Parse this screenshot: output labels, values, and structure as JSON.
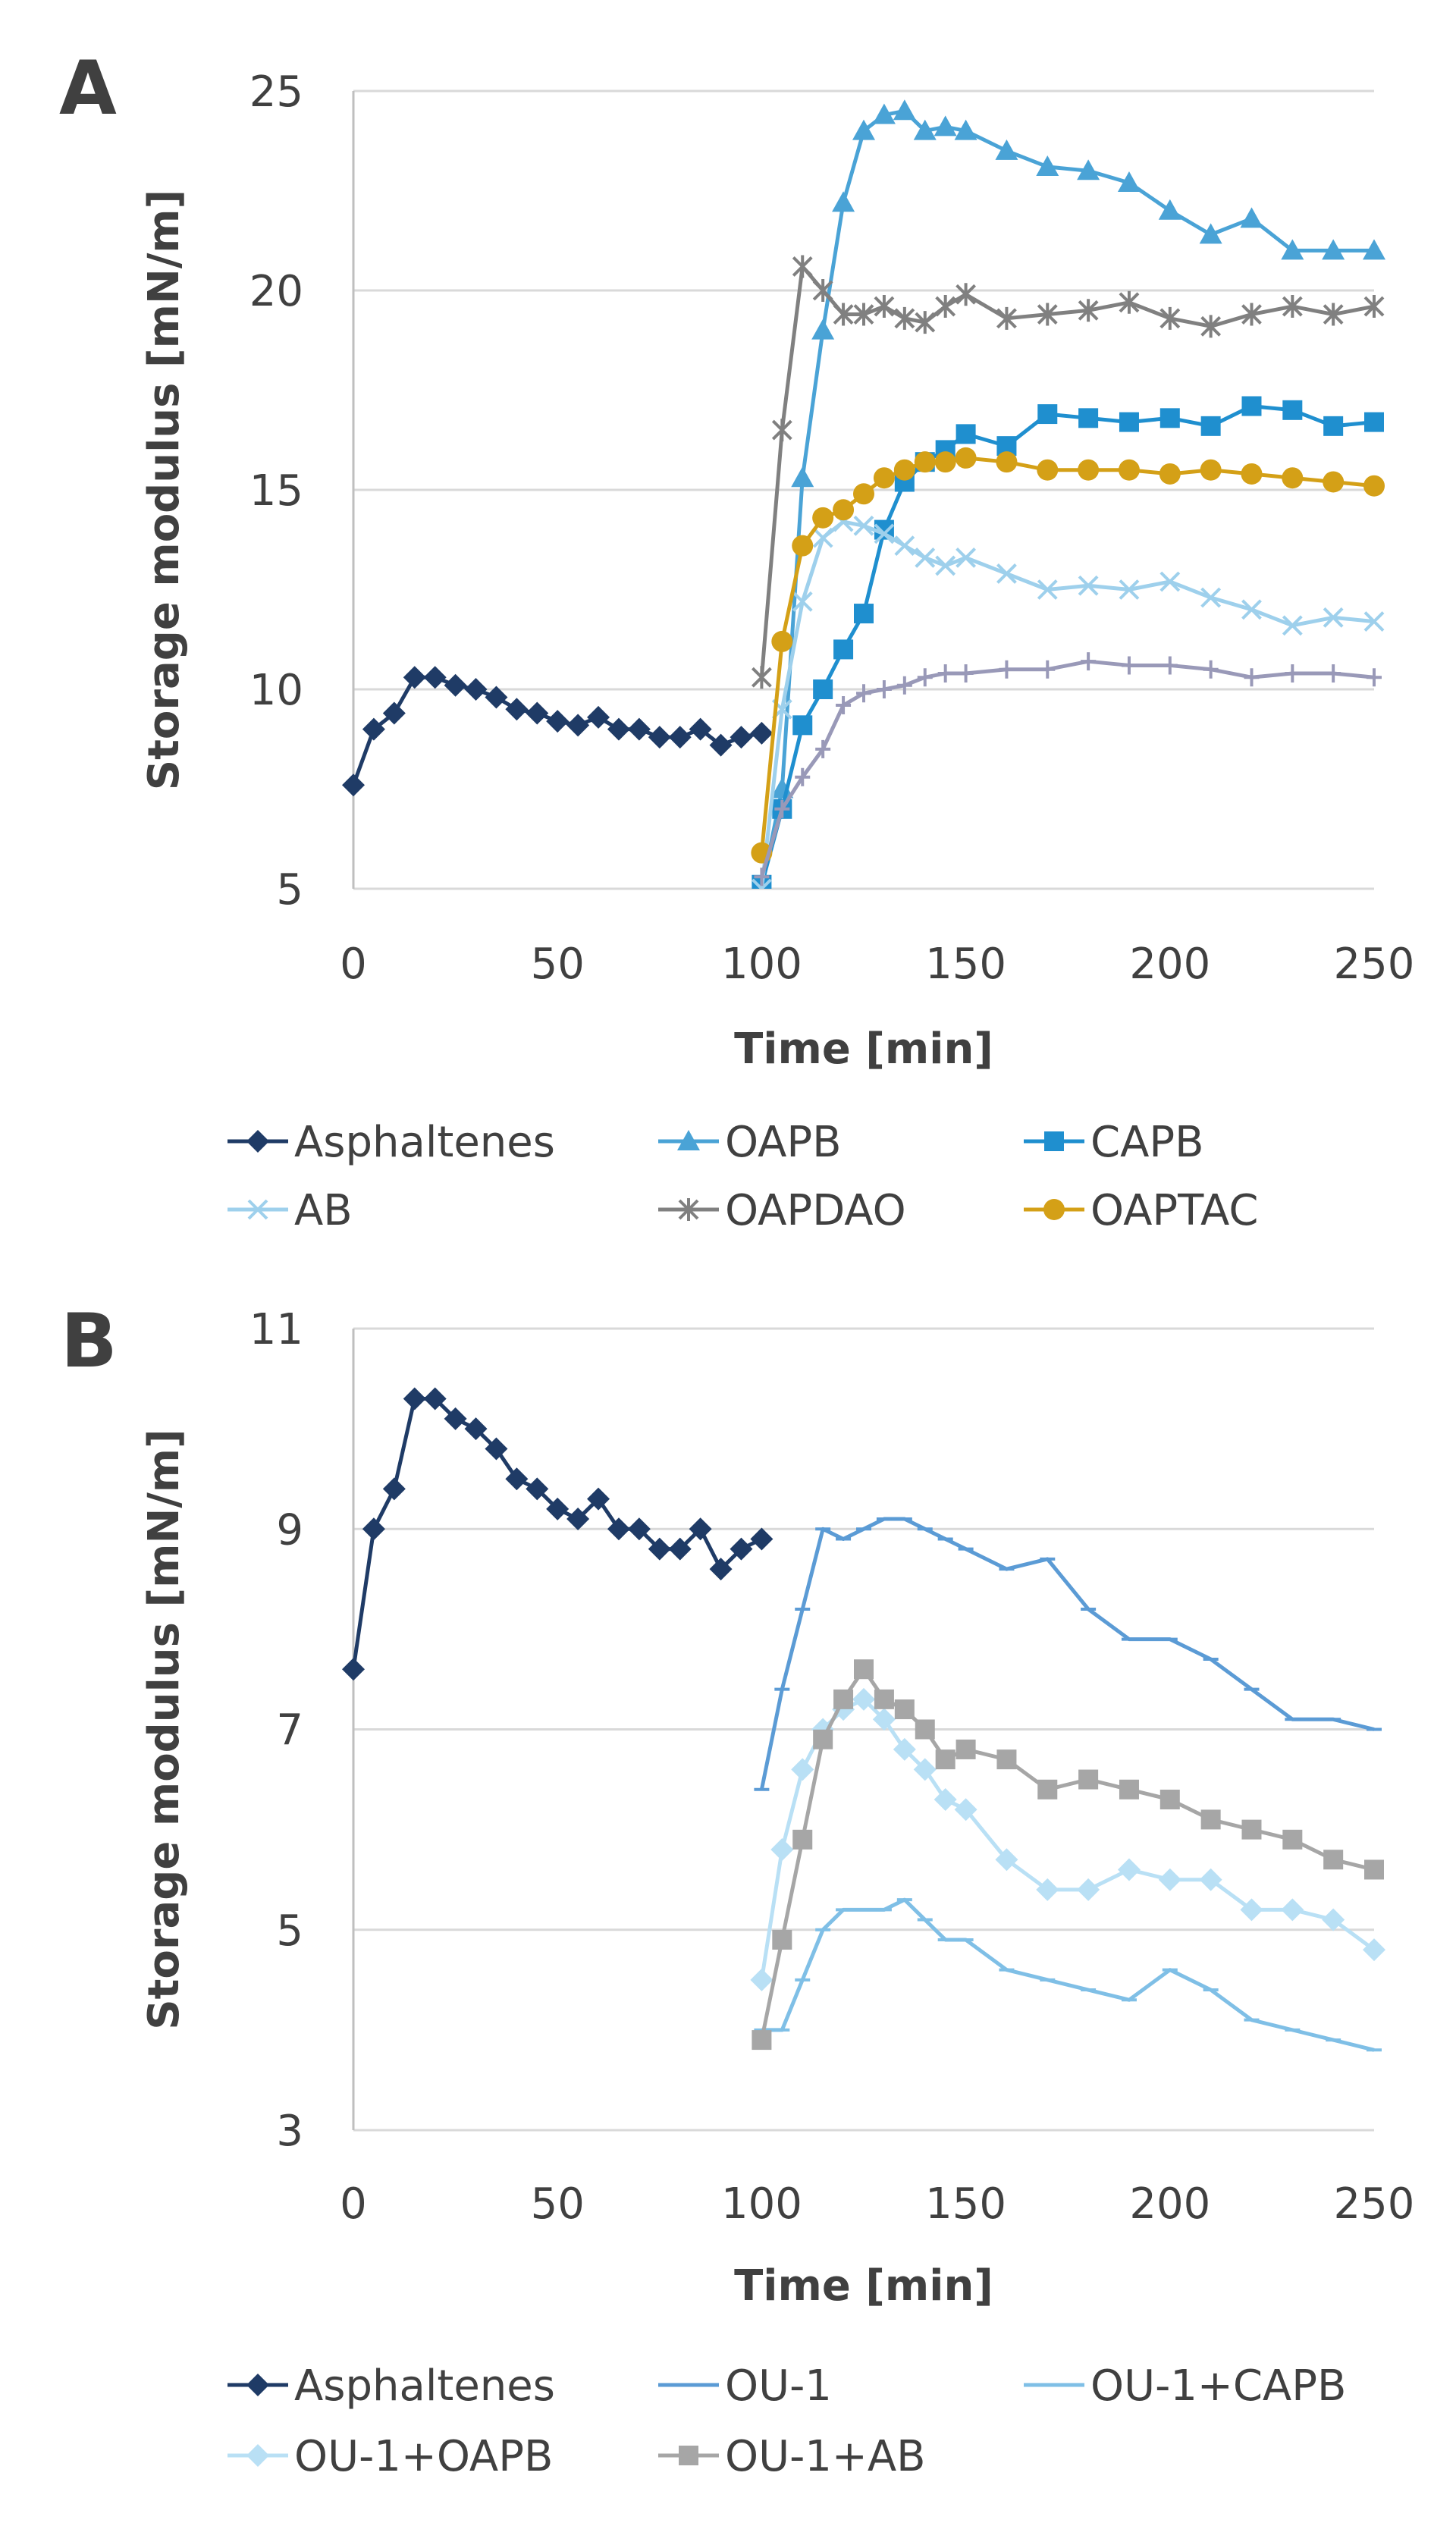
{
  "chart_data": [
    {
      "type": "line",
      "panel_label": "A",
      "xlabel": "Time [min]",
      "ylabel": "Storage modulus [mN/m]",
      "xlim": [
        0,
        250
      ],
      "ylim": [
        5,
        25
      ],
      "xticks": [
        0,
        50,
        100,
        150,
        200,
        250
      ],
      "yticks": [
        5,
        10,
        15,
        20,
        25
      ],
      "grid": "horizontal",
      "legend_position": "bottom",
      "series": [
        {
          "name": "Asphaltenes",
          "color": "#1f3b66",
          "marker": "diamond",
          "x": [
            0,
            5,
            10,
            15,
            20,
            25,
            30,
            35,
            40,
            45,
            50,
            55,
            60,
            65,
            70,
            75,
            80,
            85,
            90,
            95,
            100
          ],
          "y": [
            7.6,
            9.0,
            9.4,
            10.3,
            10.3,
            10.1,
            10.0,
            9.8,
            9.5,
            9.4,
            9.2,
            9.1,
            9.3,
            9.0,
            9.0,
            8.8,
            8.8,
            9.0,
            8.6,
            8.8,
            8.9
          ]
        },
        {
          "name": "OAPB",
          "color": "#4aa3d6",
          "marker": "triangle",
          "x": [
            100,
            105,
            110,
            115,
            120,
            125,
            130,
            135,
            140,
            145,
            150,
            160,
            170,
            180,
            190,
            200,
            210,
            220,
            230,
            240,
            250
          ],
          "y": [
            5.0,
            7.5,
            15.3,
            19.0,
            22.2,
            24.0,
            24.4,
            24.5,
            24.0,
            24.1,
            24.0,
            23.5,
            23.1,
            23.0,
            22.7,
            22.0,
            21.4,
            21.8,
            21.0,
            21.0,
            21.0
          ]
        },
        {
          "name": "CAPB",
          "color": "#1f8fcf",
          "marker": "square",
          "x": [
            100,
            105,
            110,
            115,
            120,
            125,
            130,
            135,
            140,
            145,
            150,
            160,
            170,
            180,
            190,
            200,
            210,
            220,
            230,
            240,
            250
          ],
          "y": [
            5.1,
            7.0,
            9.1,
            10.0,
            11.0,
            11.9,
            14.0,
            15.2,
            15.7,
            16.0,
            16.4,
            16.1,
            16.9,
            16.8,
            16.7,
            16.8,
            16.6,
            17.1,
            17.0,
            16.6,
            16.7
          ]
        },
        {
          "name": "AB",
          "color": "#9ed0ec",
          "marker": "x",
          "x": [
            100,
            105,
            110,
            115,
            120,
            125,
            130,
            135,
            140,
            145,
            150,
            160,
            170,
            180,
            190,
            200,
            210,
            220,
            230,
            240,
            250
          ],
          "y": [
            5.0,
            9.5,
            12.2,
            13.8,
            14.2,
            14.1,
            13.9,
            13.6,
            13.3,
            13.1,
            13.3,
            12.9,
            12.5,
            12.6,
            12.5,
            12.7,
            12.3,
            12.0,
            11.6,
            11.8,
            11.7
          ]
        },
        {
          "name": "OAPDAO",
          "color": "#808080",
          "marker": "star",
          "x": [
            100,
            105,
            110,
            115,
            120,
            125,
            130,
            135,
            140,
            145,
            150,
            160,
            170,
            180,
            190,
            200,
            210,
            220,
            230,
            240,
            250
          ],
          "y": [
            10.3,
            16.5,
            20.6,
            20.0,
            19.4,
            19.4,
            19.6,
            19.3,
            19.2,
            19.6,
            19.9,
            19.3,
            19.4,
            19.5,
            19.7,
            19.3,
            19.1,
            19.4,
            19.6,
            19.4,
            19.6
          ]
        },
        {
          "name": "OAPTAC",
          "color": "#d4a017",
          "marker": "circle",
          "x": [
            100,
            105,
            110,
            115,
            120,
            125,
            130,
            135,
            140,
            145,
            150,
            160,
            170,
            180,
            190,
            200,
            210,
            220,
            230,
            240,
            250
          ],
          "y": [
            5.9,
            11.2,
            13.6,
            14.3,
            14.5,
            14.9,
            15.3,
            15.5,
            15.7,
            15.7,
            15.8,
            15.7,
            15.5,
            15.5,
            15.5,
            15.4,
            15.5,
            15.4,
            15.3,
            15.2,
            15.1
          ]
        },
        {
          "name": "",
          "color": "#9999b8",
          "marker": "plus",
          "x": [
            100,
            105,
            110,
            115,
            120,
            125,
            130,
            135,
            140,
            145,
            150,
            160,
            170,
            180,
            190,
            200,
            210,
            220,
            230,
            240,
            250
          ],
          "y": [
            5.3,
            7.0,
            7.8,
            8.5,
            9.6,
            9.9,
            10.0,
            10.1,
            10.3,
            10.4,
            10.4,
            10.5,
            10.5,
            10.7,
            10.6,
            10.6,
            10.5,
            10.3,
            10.4,
            10.4,
            10.3
          ]
        }
      ]
    },
    {
      "type": "line",
      "panel_label": "B",
      "xlabel": "Time [min]",
      "ylabel": "Storage modulus [mN/m]",
      "xlim": [
        0,
        250
      ],
      "ylim": [
        3,
        11
      ],
      "xticks": [
        0,
        50,
        100,
        150,
        200,
        250
      ],
      "yticks": [
        3,
        5,
        7,
        9,
        11
      ],
      "grid": "horizontal",
      "legend_position": "bottom",
      "series": [
        {
          "name": "Asphaltenes",
          "color": "#1f3b66",
          "marker": "diamond",
          "x": [
            0,
            5,
            10,
            15,
            20,
            25,
            30,
            35,
            40,
            45,
            50,
            55,
            60,
            65,
            70,
            75,
            80,
            85,
            90,
            95,
            100
          ],
          "y": [
            7.6,
            9.0,
            9.4,
            10.3,
            10.3,
            10.1,
            10.0,
            9.8,
            9.5,
            9.4,
            9.2,
            9.1,
            9.3,
            9.0,
            9.0,
            8.8,
            8.8,
            9.0,
            8.6,
            8.8,
            8.9
          ]
        },
        {
          "name": "OU-1",
          "color": "#5b9bd5",
          "marker": "dash",
          "x": [
            100,
            105,
            110,
            115,
            120,
            125,
            130,
            135,
            140,
            145,
            150,
            160,
            170,
            180,
            190,
            200,
            210,
            220,
            230,
            240,
            250
          ],
          "y": [
            6.4,
            7.4,
            8.2,
            9.0,
            8.9,
            9.0,
            9.1,
            9.1,
            9.0,
            8.9,
            8.8,
            8.6,
            8.7,
            8.2,
            7.9,
            7.9,
            7.7,
            7.4,
            7.1,
            7.1,
            7.0
          ]
        },
        {
          "name": "OU-1+CAPB",
          "color": "#7fbfe6",
          "marker": "dash",
          "x": [
            100,
            105,
            110,
            115,
            120,
            125,
            130,
            135,
            140,
            145,
            150,
            160,
            170,
            180,
            190,
            200,
            210,
            220,
            230,
            240,
            250
          ],
          "y": [
            4.0,
            4.0,
            4.5,
            5.0,
            5.2,
            5.2,
            5.2,
            5.3,
            5.1,
            4.9,
            4.9,
            4.6,
            4.5,
            4.4,
            4.3,
            4.6,
            4.4,
            4.1,
            4.0,
            3.9,
            3.8
          ]
        },
        {
          "name": "OU-1+OAPB",
          "color": "#b9e0f5",
          "marker": "diamond",
          "x": [
            100,
            105,
            110,
            115,
            120,
            125,
            130,
            135,
            140,
            145,
            150,
            160,
            170,
            180,
            190,
            200,
            210,
            220,
            230,
            240,
            250
          ],
          "y": [
            4.5,
            5.8,
            6.6,
            7.0,
            7.2,
            7.3,
            7.1,
            6.8,
            6.6,
            6.3,
            6.2,
            5.7,
            5.4,
            5.4,
            5.6,
            5.5,
            5.5,
            5.2,
            5.2,
            5.1,
            4.8
          ]
        },
        {
          "name": "OU-1+AB",
          "color": "#a6a6a6",
          "marker": "square",
          "x": [
            100,
            105,
            110,
            115,
            120,
            125,
            130,
            135,
            140,
            145,
            150,
            160,
            170,
            180,
            190,
            200,
            210,
            220,
            230,
            240,
            250
          ],
          "y": [
            3.9,
            4.9,
            5.9,
            6.9,
            7.3,
            7.6,
            7.3,
            7.2,
            7.0,
            6.7,
            6.8,
            6.7,
            6.4,
            6.5,
            6.4,
            6.3,
            6.1,
            6.0,
            5.9,
            5.7,
            5.6
          ]
        }
      ]
    }
  ]
}
